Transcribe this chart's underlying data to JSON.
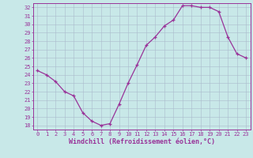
{
  "hours": [
    0,
    1,
    2,
    3,
    4,
    5,
    6,
    7,
    8,
    9,
    10,
    11,
    12,
    13,
    14,
    15,
    16,
    17,
    18,
    19,
    20,
    21,
    22,
    23
  ],
  "values": [
    24.5,
    24.0,
    23.2,
    22.0,
    21.5,
    19.5,
    18.5,
    18.0,
    18.2,
    20.5,
    23.0,
    25.2,
    27.5,
    28.5,
    29.8,
    30.5,
    32.2,
    32.2,
    32.0,
    32.0,
    31.5,
    28.5,
    26.5,
    26.0
  ],
  "line_color": "#993399",
  "marker": "+",
  "marker_size": 3,
  "bg_color": "#c8e8e8",
  "grid_color": "#aabbcc",
  "xlabel": "Windchill (Refroidissement éolien,°C)",
  "ylim": [
    17.5,
    32.5
  ],
  "xlim": [
    -0.5,
    23.5
  ],
  "yticks": [
    18,
    19,
    20,
    21,
    22,
    23,
    24,
    25,
    26,
    27,
    28,
    29,
    30,
    31,
    32
  ],
  "xticks": [
    0,
    1,
    2,
    3,
    4,
    5,
    6,
    7,
    8,
    9,
    10,
    11,
    12,
    13,
    14,
    15,
    16,
    17,
    18,
    19,
    20,
    21,
    22,
    23
  ],
  "tick_color": "#993399",
  "tick_fontsize": 5.0,
  "xlabel_fontsize": 6.0,
  "spine_color": "#993399",
  "linewidth": 0.9,
  "markeredgewidth": 0.9
}
